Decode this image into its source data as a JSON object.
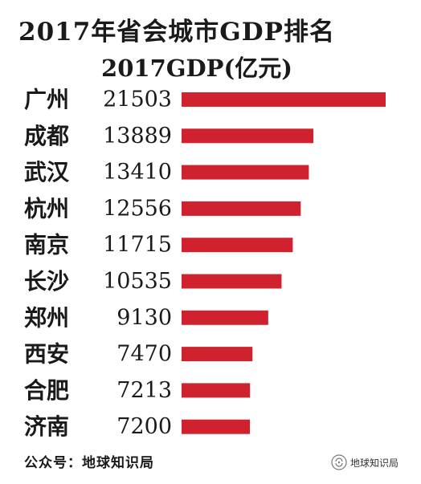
{
  "chart_data": {
    "type": "bar",
    "orientation": "horizontal",
    "title": "2017年省会城市GDP排名",
    "subtitle": "2017GDP(亿元)",
    "categories": [
      "广州",
      "成都",
      "武汉",
      "杭州",
      "南京",
      "长沙",
      "郑州",
      "西安",
      "合肥",
      "济南"
    ],
    "values": [
      21503,
      13889,
      13410,
      12556,
      11715,
      10535,
      9130,
      7470,
      7213,
      7200
    ],
    "value_labels": [
      "21503",
      "13889",
      "13410",
      "12556",
      "11715",
      "10535",
      "9130",
      "7470",
      "7213",
      "7200"
    ],
    "bar_color": "#d0222e",
    "xlim": [
      0,
      21503
    ],
    "grid": false,
    "legend": "none"
  },
  "footer": "公众号：地球知识局",
  "watermark": {
    "text": "地球知识局",
    "icon": "wechat-logo-icon"
  }
}
